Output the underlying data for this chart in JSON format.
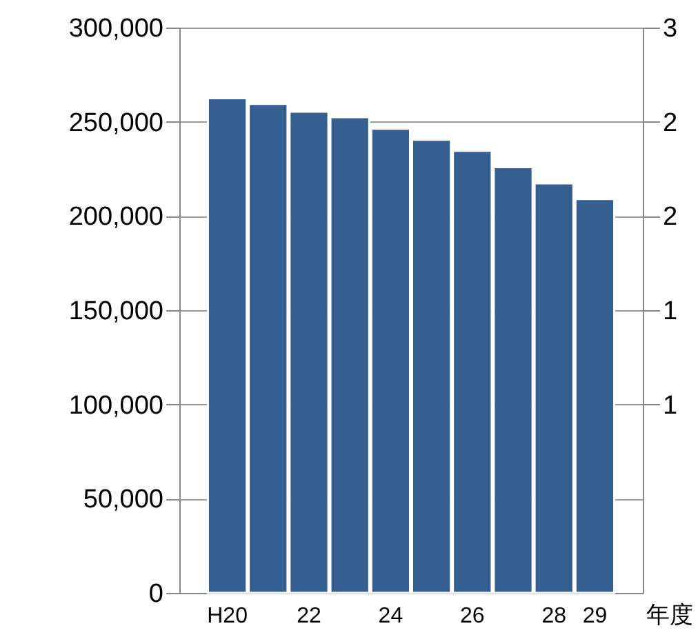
{
  "chart_data": {
    "type": "bar",
    "xlabel": "年度",
    "categories": [
      "H20",
      null,
      "22",
      null,
      "24",
      null,
      "26",
      null,
      "28",
      "29"
    ],
    "values": [
      262500,
      259500,
      255400,
      252400,
      246300,
      240500,
      234600,
      225900,
      217300,
      209000
    ],
    "color": "#365f91",
    "ylim": [
      0,
      300000
    ],
    "yticks": [
      {
        "value": 0,
        "label": "0"
      },
      {
        "value": 50000,
        "label": "50,000"
      },
      {
        "value": 100000,
        "label": "100,000"
      },
      {
        "value": 150000,
        "label": "150,000"
      },
      {
        "value": 200000,
        "label": "200,000"
      },
      {
        "value": 250000,
        "label": "250,000"
      },
      {
        "value": 300000,
        "label": "300,000"
      }
    ],
    "y2lim": [
      0,
      3
    ],
    "y2ticks": [
      {
        "value": 1,
        "label": "1"
      },
      {
        "value": 1.5,
        "label": "1"
      },
      {
        "value": 2,
        "label": "2"
      },
      {
        "value": 2.5,
        "label": "2"
      },
      {
        "value": 3,
        "label": "3"
      }
    ],
    "grid": "y"
  }
}
